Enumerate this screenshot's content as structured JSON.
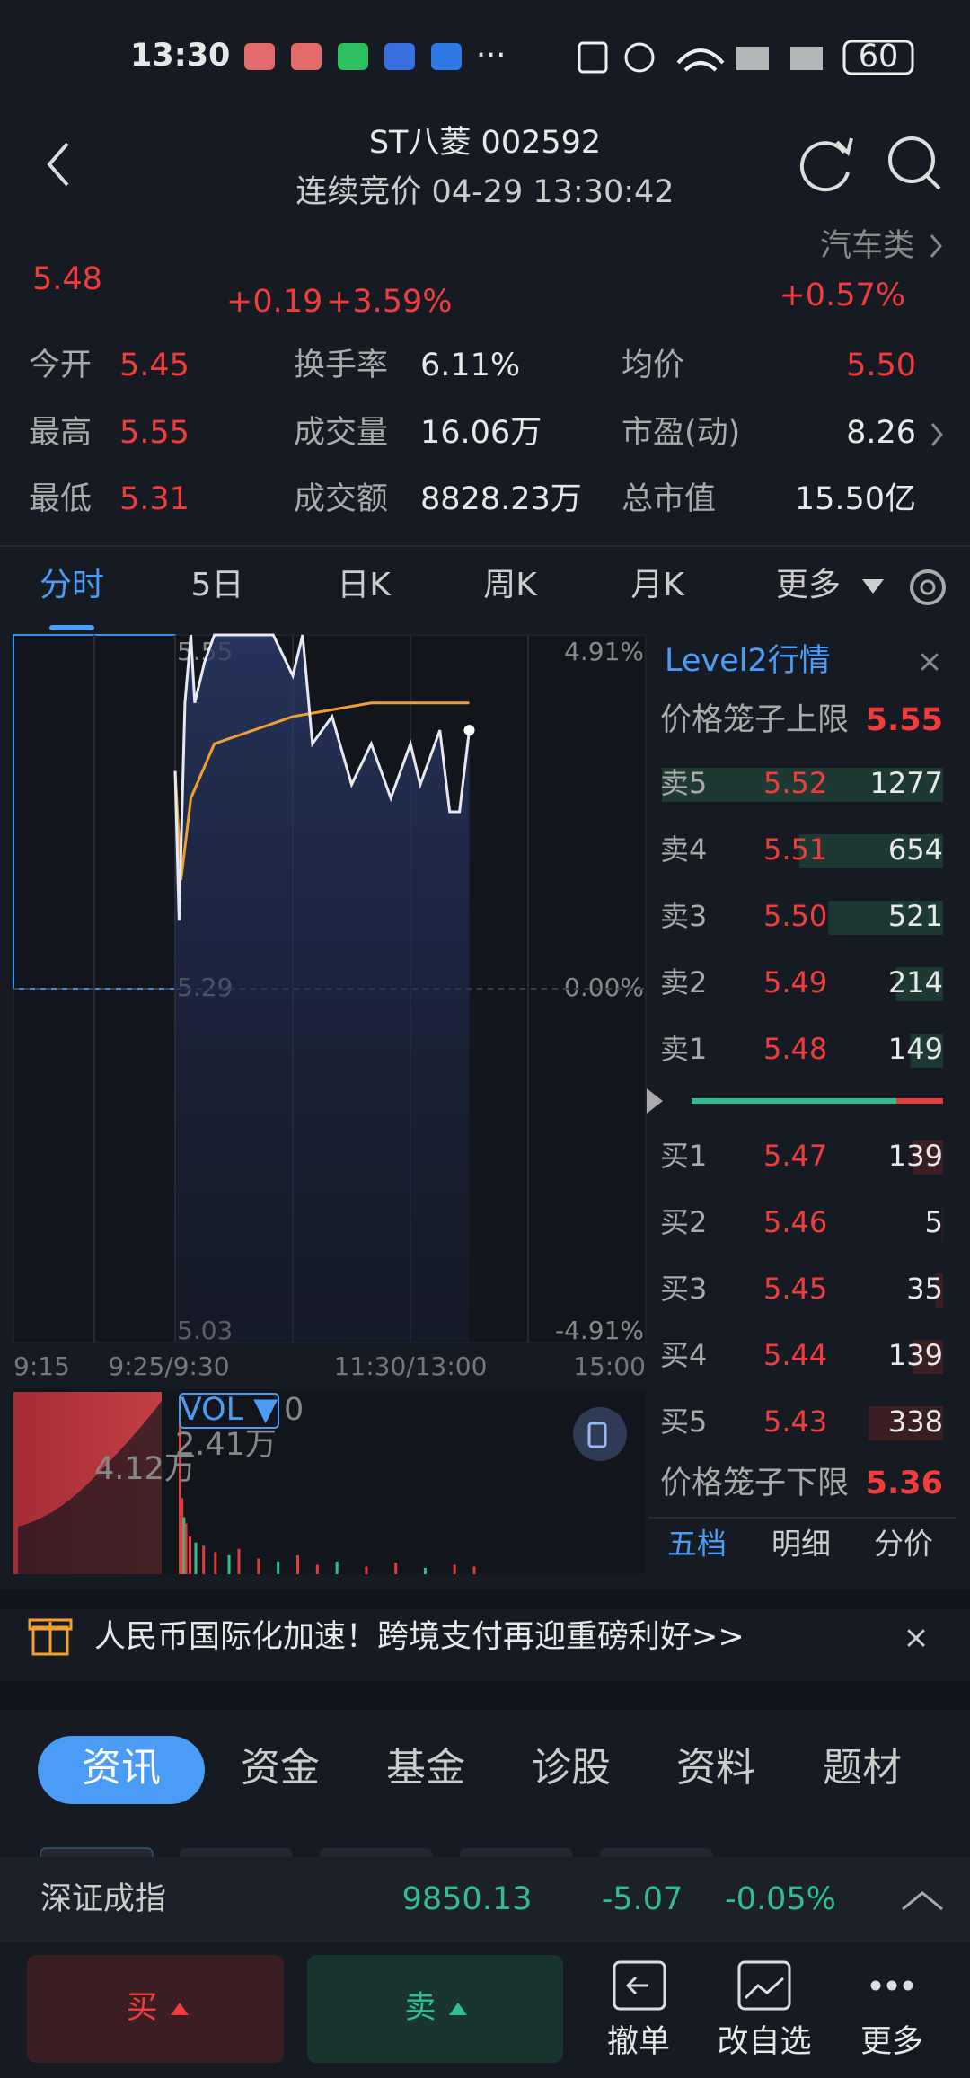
{
  "status_bar": {
    "time": "13:30",
    "battery": "60"
  },
  "header": {
    "title": "ST八菱 002592",
    "subtitle": "连续竞价 04-29 13:30:42"
  },
  "quote": {
    "price": "5.48",
    "change": "+0.19",
    "change_pct": "+3.59%",
    "sector": "汽车类",
    "sector_change": "+0.57%"
  },
  "stats": [
    [
      {
        "label": "今开",
        "value": "5.45",
        "color": "#f23c3c"
      },
      {
        "label": "换手率",
        "value": "6.11%",
        "color": "#e8e8e8"
      },
      {
        "label": "均价",
        "value": "5.50",
        "color": "#f23c3c"
      }
    ],
    [
      {
        "label": "最高",
        "value": "5.55",
        "color": "#f23c3c"
      },
      {
        "label": "成交量",
        "value": "16.06万",
        "color": "#e8e8e8"
      },
      {
        "label": "市盈(动)",
        "value": "8.26",
        "color": "#e8e8e8"
      }
    ],
    [
      {
        "label": "最低",
        "value": "5.31",
        "color": "#f23c3c"
      },
      {
        "label": "成交额",
        "value": "8828.23万",
        "color": "#e8e8e8"
      },
      {
        "label": "总市值",
        "value": "15.50亿",
        "color": "#e8e8e8"
      }
    ]
  ],
  "tabs": [
    "分时",
    "5日",
    "日K",
    "周K",
    "月K",
    "更多"
  ],
  "intraday": {
    "ylim": [
      5.03,
      5.55
    ],
    "yticks": [
      5.55,
      5.29,
      5.03
    ],
    "pct_ticks": [
      {
        "value": 5.55,
        "label": "4.91%"
      },
      {
        "value": 5.29,
        "label": "0.00%"
      },
      {
        "value": 5.03,
        "label": "-4.91%"
      }
    ],
    "time_labels": [
      "9:15",
      "9:25/9:30",
      "11:30/13:00",
      "15:00"
    ],
    "minutes": [
      0,
      2,
      5,
      8,
      10,
      15,
      20,
      30,
      40,
      50,
      60,
      65,
      70,
      80,
      90,
      100,
      110,
      120,
      125,
      135,
      140,
      145,
      150
    ],
    "price": [
      5.45,
      5.34,
      5.5,
      5.55,
      5.5,
      5.53,
      5.55,
      5.55,
      5.55,
      5.55,
      5.52,
      5.55,
      5.47,
      5.49,
      5.44,
      5.47,
      5.43,
      5.47,
      5.44,
      5.48,
      5.42,
      5.42,
      5.48
    ],
    "avg_minutes": [
      0,
      3,
      8,
      20,
      60,
      100,
      150
    ],
    "avg": [
      5.45,
      5.37,
      5.43,
      5.47,
      5.49,
      5.5,
      5.5
    ]
  },
  "volume": {
    "indicator": "VOL ▼",
    "value": "0",
    "label_left": "4.12万",
    "label_right": "2.41万",
    "minutes": [
      0,
      1,
      2,
      3,
      5,
      8,
      12,
      18,
      25,
      30,
      40,
      50,
      60,
      70,
      80,
      95,
      110,
      125,
      140,
      150
    ],
    "values": [
      2.41,
      1.2,
      0.9,
      0.8,
      0.6,
      0.5,
      0.45,
      0.35,
      0.3,
      0.4,
      0.25,
      0.2,
      0.3,
      0.15,
      0.2,
      0.12,
      0.18,
      0.1,
      0.15,
      0.12
    ]
  },
  "order_book": {
    "title": "Level2行情",
    "upper_limit_label": "价格笼子上限",
    "upper_limit": "5.55",
    "asks": [
      {
        "label": "卖5",
        "price": "5.52",
        "volume": 1277
      },
      {
        "label": "卖4",
        "price": "5.51",
        "volume": 654
      },
      {
        "label": "卖3",
        "price": "5.50",
        "volume": 521
      },
      {
        "label": "卖2",
        "price": "5.49",
        "volume": 214
      },
      {
        "label": "卖1",
        "price": "5.48",
        "volume": 149
      }
    ],
    "bids": [
      {
        "label": "买1",
        "price": "5.47",
        "volume": 139
      },
      {
        "label": "买2",
        "price": "5.46",
        "volume": 5
      },
      {
        "label": "买3",
        "price": "5.45",
        "volume": 35
      },
      {
        "label": "买4",
        "price": "5.44",
        "volume": 139
      },
      {
        "label": "买5",
        "price": "5.43",
        "volume": 338
      }
    ],
    "lower_limit_label": "价格笼子下限",
    "lower_limit": "5.36",
    "tabs": [
      "五档",
      "明细",
      "分价"
    ]
  },
  "banner": "人民币国际化加速！跨境支付再迎重磅利好>>",
  "info_tabs": [
    "资讯",
    "资金",
    "基金",
    "诊股",
    "资料",
    "题材"
  ],
  "index": {
    "name": "深证成指",
    "value": "9850.13",
    "change": "-5.07",
    "change_pct": "-0.05%"
  },
  "actions": {
    "buy": "买",
    "sell": "卖",
    "cancel": "撤单",
    "watchlist": "改自选",
    "more": "更多"
  }
}
